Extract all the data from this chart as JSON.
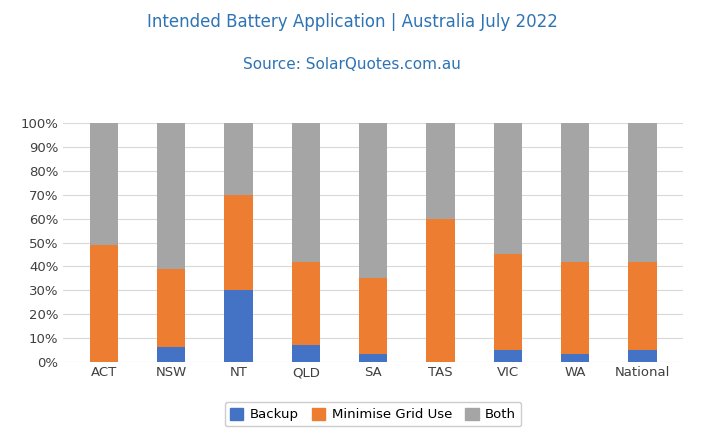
{
  "categories": [
    "ACT",
    "NSW",
    "NT",
    "QLD",
    "SA",
    "TAS",
    "VIC",
    "WA",
    "National"
  ],
  "backup": [
    0,
    6,
    30,
    7,
    3,
    0,
    5,
    3,
    5
  ],
  "minimise_grid": [
    49,
    33,
    40,
    35,
    32,
    60,
    40,
    39,
    37
  ],
  "both": [
    51,
    61,
    30,
    58,
    65,
    40,
    55,
    58,
    58
  ],
  "colors": {
    "backup": "#4472c4",
    "minimise_grid": "#ed7d31",
    "both": "#a5a5a5"
  },
  "title_line1": "Intended Battery Application | Australia July 2022",
  "title_line2": "Source: SolarQuotes.com.au",
  "title_color": "#2e74b5",
  "ylabel_ticks": [
    "0%",
    "10%",
    "20%",
    "30%",
    "40%",
    "50%",
    "60%",
    "70%",
    "80%",
    "90%",
    "100%"
  ],
  "ytick_vals": [
    0,
    10,
    20,
    30,
    40,
    50,
    60,
    70,
    80,
    90,
    100
  ],
  "ylim": [
    0,
    100
  ],
  "background_color": "#ffffff",
  "grid_color": "#d9d9d9",
  "legend_labels": [
    "Backup",
    "Minimise Grid Use",
    "Both"
  ],
  "bar_width": 0.42
}
